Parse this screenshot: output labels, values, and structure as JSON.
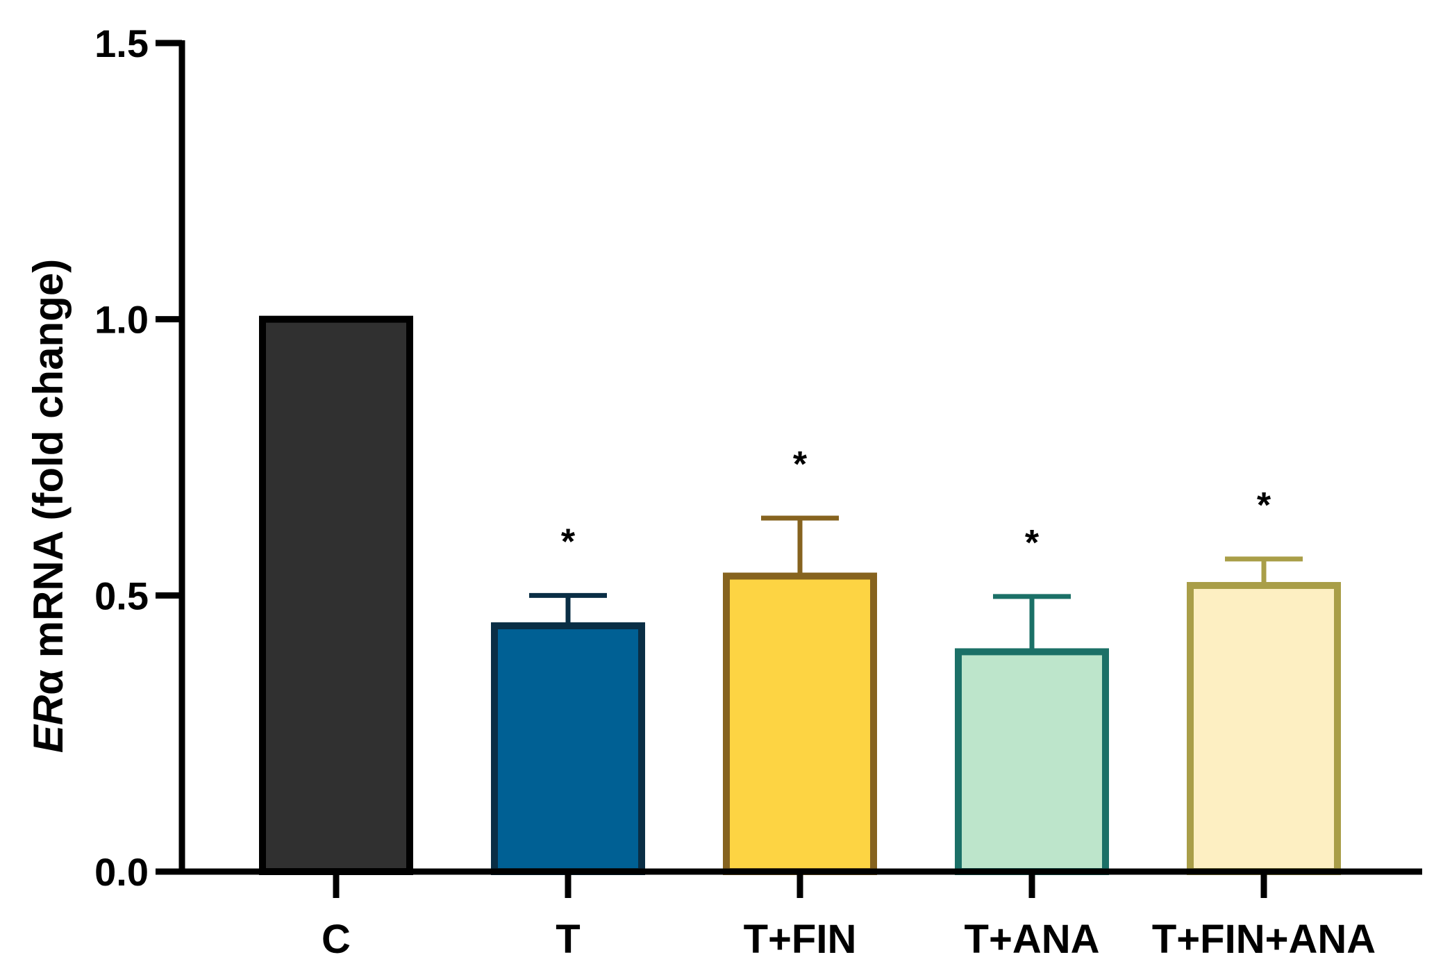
{
  "chart_data": {
    "type": "bar",
    "title": "",
    "xlabel": "",
    "ylabel_italic": "ER",
    "ylabel_symbol": "α",
    "ylabel_rest": " mRNA (fold change)",
    "ylim": [
      0,
      1.5
    ],
    "yticks": [
      {
        "value": 0.0,
        "label": "0.0"
      },
      {
        "value": 0.5,
        "label": "0.5"
      },
      {
        "value": 1.0,
        "label": "1.0"
      },
      {
        "value": 1.5,
        "label": "1.5"
      }
    ],
    "grid": false,
    "legend": "none",
    "categories": [
      "C",
      "T",
      "T+FIN",
      "T+ANA",
      "T+FIN+ANA"
    ],
    "values": [
      1.0,
      0.445,
      0.535,
      0.398,
      0.518
    ],
    "error": [
      null,
      0.055,
      0.105,
      0.1,
      0.048
    ],
    "significance": [
      "",
      "*",
      "*",
      "*",
      "*"
    ],
    "fill_colors": [
      "#303030",
      "#006094",
      "#fdd443",
      "#bde5cb",
      "#fdefc2"
    ],
    "edge_colors": [
      "#000000",
      "#0a2e45",
      "#86631f",
      "#1b7067",
      "#a99e48"
    ]
  }
}
